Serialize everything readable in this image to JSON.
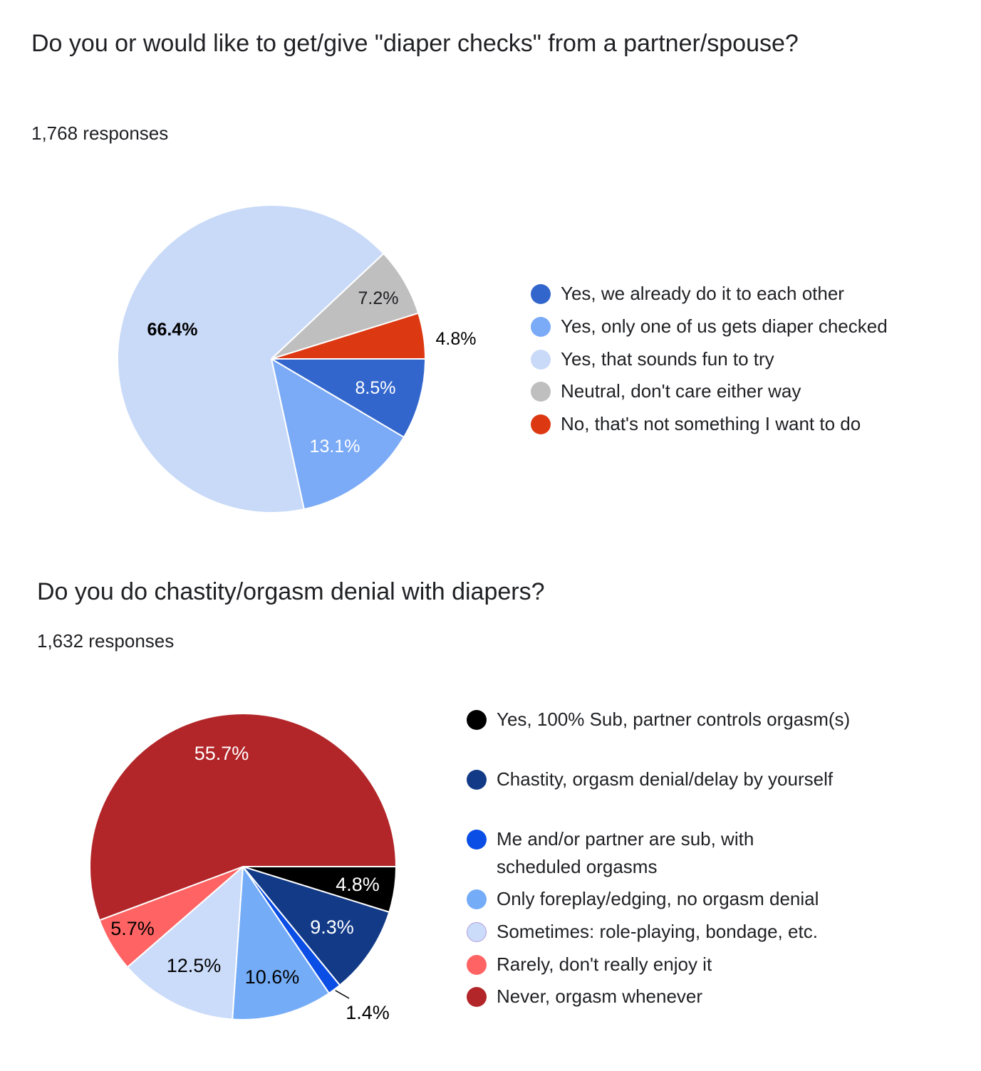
{
  "chart_data": [
    {
      "type": "pie",
      "title": "Do you or would like to get/give \"diaper checks\" from a partner/spouse?",
      "responses": "1,768 responses",
      "legend_position": "right",
      "slices": [
        {
          "label": "Yes, we already do it to each other",
          "value": 8.5,
          "display": "8.5%",
          "color": "#3366cc",
          "label_color": "#ffffff"
        },
        {
          "label": "Yes, only one of us gets diaper checked",
          "value": 13.1,
          "display": "13.1%",
          "color": "#7baaf7",
          "label_color": "#ffffff"
        },
        {
          "label": "Yes, that sounds fun to try",
          "value": 66.4,
          "display": "66.4%",
          "color": "#c9daf8",
          "label_color": "#000000"
        },
        {
          "label": "Neutral, don't care either way",
          "value": 7.2,
          "display": "7.2%",
          "color": "#bfbfbf",
          "label_color": "#202124"
        },
        {
          "label": "No, that's not something I want to do",
          "value": 4.8,
          "display": "4.8%",
          "color": "#dc3912",
          "label_color": "#000000"
        }
      ]
    },
    {
      "type": "pie",
      "title": "Do you do chastity/orgasm denial with diapers?",
      "responses": "1,632 responses",
      "legend_position": "right",
      "slices": [
        {
          "label": "Yes, 100% Sub, partner controls orgasm(s)",
          "value": 4.8,
          "display": "4.8%",
          "color": "#000000",
          "label_color": "#ffffff"
        },
        {
          "label": "Chastity, orgasm denial/delay by yourself",
          "value": 9.3,
          "display": "9.3%",
          "color": "#123a87",
          "label_color": "#ffffff"
        },
        {
          "label": "Me and/or partner are sub, with scheduled orgasms",
          "value": 1.4,
          "display": "1.4%",
          "color": "#0b4ee6",
          "label_color": "#000000"
        },
        {
          "label": "Only foreplay/edging, no orgasm denial",
          "value": 10.6,
          "display": "10.6%",
          "color": "#74acf7",
          "label_color": "#000000"
        },
        {
          "label": "Sometimes: role-playing, bondage, etc.",
          "value": 12.5,
          "display": "12.5%",
          "color": "#cbdcfa",
          "label_color": "#000000"
        },
        {
          "label": "Rarely, don't really enjoy it",
          "value": 5.7,
          "display": "5.7%",
          "color": "#ff6363",
          "label_color": "#000000"
        },
        {
          "label": "Never, orgasm whenever",
          "value": 55.7,
          "display": "55.7%",
          "color": "#b22629",
          "label_color": "#ffffff"
        }
      ]
    }
  ]
}
